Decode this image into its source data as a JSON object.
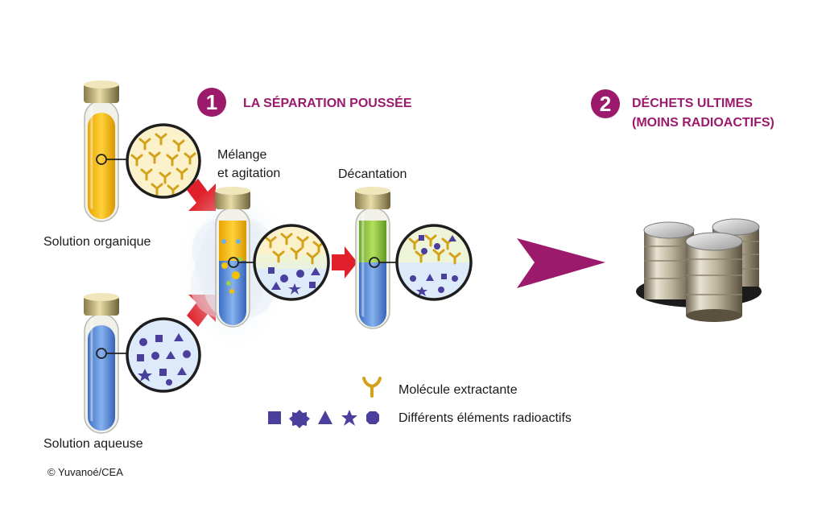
{
  "colors": {
    "accent": "#9b1a6b",
    "arrow_red": "#e0202a",
    "organic_yellow": "#f3b800",
    "aqueous_blue": "#5a8fd8",
    "decant_green": "#8cc63f",
    "molecule_gold": "#d4a21a",
    "element_purple": "#4b3f9e"
  },
  "step1": {
    "number": "1",
    "title": "LA SÉPARATION POUSSÉE"
  },
  "step2": {
    "number": "2",
    "title_line1": "DÉCHETS ULTIMES",
    "title_line2": "(MOINS RADIOACTIFS)"
  },
  "labels": {
    "organic": "Solution organique",
    "aqueous": "Solution aqueuse",
    "mixing_line1": "Mélange",
    "mixing_line2": "et agitation",
    "decantation": "Décantation"
  },
  "legend": {
    "molecule": "Molécule extractante",
    "elements": "Différents éléments radioactifs",
    "molecule_icon": "y-shaped-molecule-icon",
    "element_icons": [
      "square-icon",
      "gear-icon",
      "triangle-icon",
      "star-icon",
      "octagon-icon"
    ]
  },
  "credit": "© Yuvanoé/CEA"
}
